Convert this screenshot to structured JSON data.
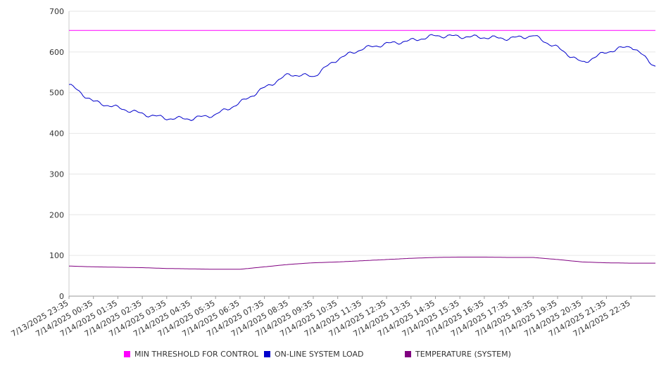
{
  "chart_data": {
    "type": "line",
    "title": "",
    "xlabel": "",
    "ylabel": "",
    "ylim": [
      0,
      700
    ],
    "y_ticks": [
      "0",
      "100",
      "200",
      "300",
      "400",
      "500",
      "600",
      "700"
    ],
    "x_tick_labels": [
      "7/13/2025 23:35",
      "7/14/2025 00:35",
      "7/14/2025 01:35",
      "7/14/2025 02:35",
      "7/14/2025 03:35",
      "7/14/2025 04:35",
      "7/14/2025 05:35",
      "7/14/2025 06:35",
      "7/14/2025 07:35",
      "7/14/2025 08:35",
      "7/14/2025 09:35",
      "7/14/2025 10:35",
      "7/14/2025 11:35",
      "7/14/2025 12:35",
      "7/14/2025 13:35",
      "7/14/2025 14:35",
      "7/14/2025 15:35",
      "7/14/2025 16:35",
      "7/14/2025 17:35",
      "7/14/2025 18:35",
      "7/14/2025 19:35",
      "7/14/2025 20:35",
      "7/14/2025 21:35",
      "7/14/2025 22:35"
    ],
    "grid": true,
    "legend_position": "bottom",
    "series": [
      {
        "name": "MIN THRESHOLD FOR CONTROL",
        "color": "#ff00ff",
        "values": [
          653,
          653,
          653,
          653,
          653,
          653,
          653,
          653,
          653,
          653,
          653,
          653,
          653,
          653,
          653,
          653,
          653,
          653,
          653,
          653,
          653,
          653,
          653,
          653,
          653
        ]
      },
      {
        "name": "ON-LINE SYSTEM LOAD",
        "color": "#0000cc",
        "values": [
          520,
          478,
          463,
          448,
          437,
          436,
          446,
          475,
          512,
          545,
          540,
          583,
          608,
          620,
          628,
          640,
          638,
          636,
          633,
          640,
          610,
          573,
          600,
          615,
          565
        ]
      },
      {
        "name": "TEMPERATURE (SYSTEM)",
        "color": "#800080",
        "values": [
          74,
          72,
          71,
          70,
          68,
          67,
          66,
          66,
          72,
          78,
          82,
          84,
          87,
          90,
          93,
          95,
          96,
          96,
          95,
          95,
          90,
          84,
          82,
          81,
          81
        ]
      }
    ]
  }
}
